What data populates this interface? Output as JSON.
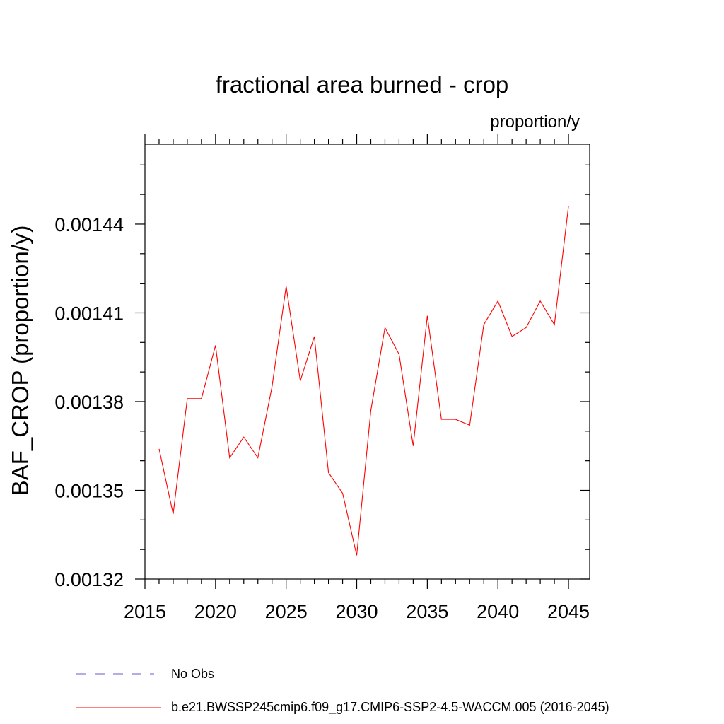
{
  "chart_data": {
    "type": "line",
    "title": "fractional area burned - crop",
    "units_label": "proportion/y",
    "ylabel": "BAF_CROP  (proportion/y)",
    "xlabel": "",
    "xlim": [
      2015,
      2046.5
    ],
    "ylim": [
      0.00132,
      0.001467
    ],
    "x_ticks": [
      2015,
      2020,
      2025,
      2030,
      2035,
      2040,
      2045
    ],
    "y_ticks": [
      0.00132,
      0.00135,
      0.00138,
      0.00141,
      0.00144
    ],
    "y_tick_labels": [
      "0.00132",
      "0.00135",
      "0.00138",
      "0.00141",
      "0.00144"
    ],
    "grid": false,
    "legend_position": "bottom",
    "series": [
      {
        "name": "b.e21.BWSSP245cmip6.f09_g17.CMIP6-SSP2-4.5-WACCM.005 (2016-2045)",
        "color": "#ff0000",
        "style": "solid",
        "x": [
          2016,
          2017,
          2018,
          2019,
          2020,
          2021,
          2022,
          2023,
          2024,
          2025,
          2026,
          2027,
          2028,
          2029,
          2030,
          2031,
          2032,
          2033,
          2034,
          2035,
          2036,
          2037,
          2038,
          2039,
          2040,
          2041,
          2042,
          2043,
          2044,
          2045
        ],
        "values": [
          0.001364,
          0.001342,
          0.001381,
          0.001381,
          0.001399,
          0.001361,
          0.001368,
          0.001361,
          0.001385,
          0.001419,
          0.001387,
          0.001402,
          0.001356,
          0.001349,
          0.001328,
          0.001377,
          0.001405,
          0.001396,
          0.001365,
          0.001409,
          0.001374,
          0.001374,
          0.001372,
          0.001406,
          0.001414,
          0.001402,
          0.001405,
          0.001414,
          0.001406,
          0.001446
        ]
      },
      {
        "name": "No Obs",
        "color": "#6a5acd",
        "style": "dashed",
        "x": [],
        "values": []
      }
    ]
  }
}
